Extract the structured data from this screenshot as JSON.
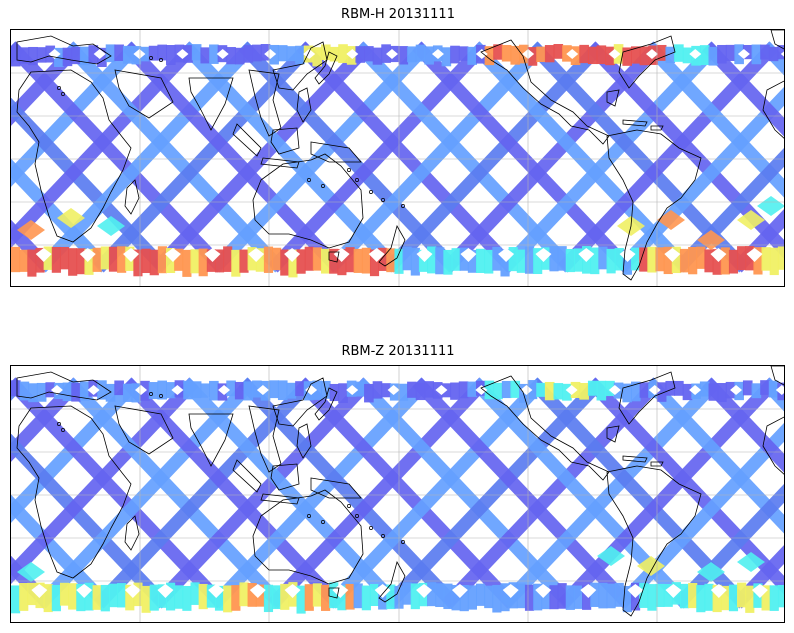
{
  "panels": [
    {
      "title": "RBM-H 20131111",
      "variable": "RBM-H",
      "date": "20131111",
      "colormap": "jet",
      "intensity": "high-in-south",
      "show_gridlines": true,
      "show_coastlines": true
    },
    {
      "title": "RBM-Z 20131111",
      "variable": "RBM-Z",
      "date": "20131111",
      "colormap": "jet",
      "intensity": "low",
      "show_gridlines": true,
      "show_coastlines": true
    }
  ],
  "colors": {
    "track_blue": "#6464f0",
    "track_lightblue": "#64a0ff",
    "jet_cyan": "#50f0f0",
    "jet_yellow": "#f0f064",
    "jet_orange": "#ff9650",
    "jet_red": "#e65050",
    "coastline": "#000000",
    "grid": "#b4b4b4"
  }
}
